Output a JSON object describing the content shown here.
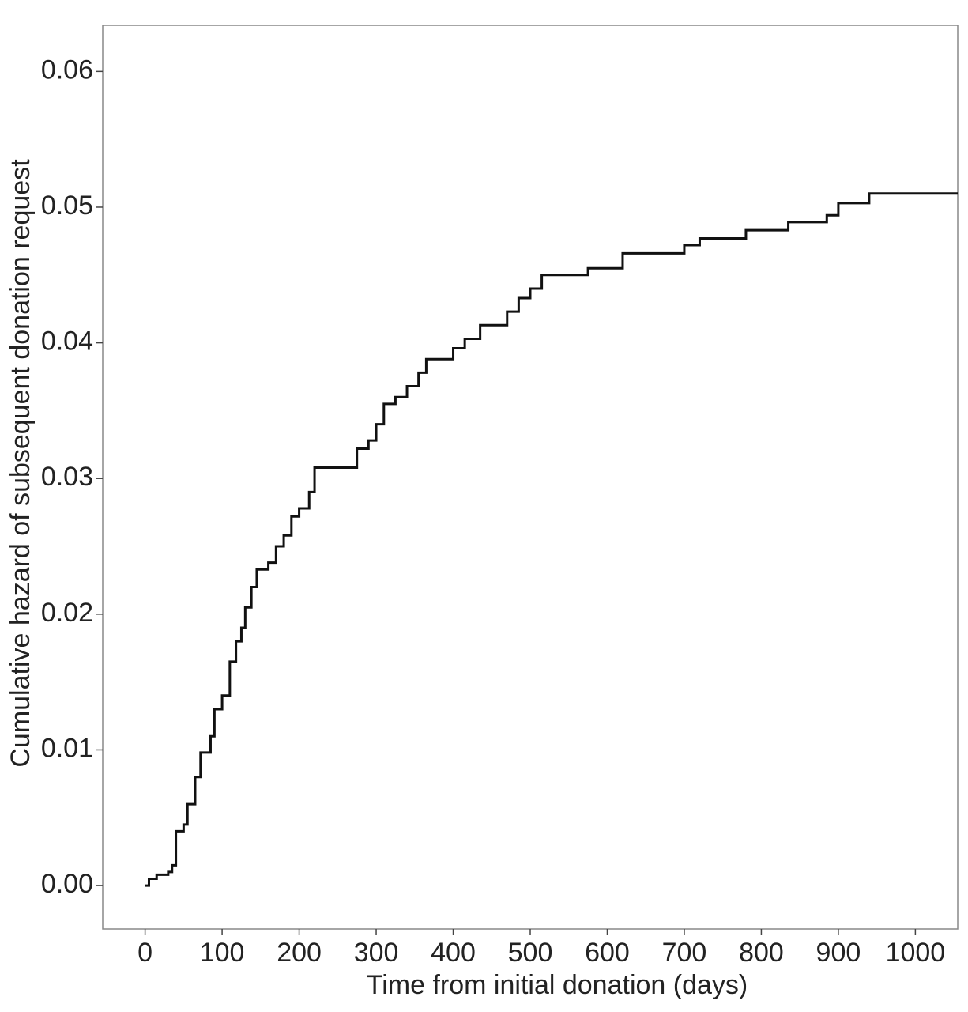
{
  "chart_data": {
    "type": "step",
    "x_label": "Time from initial donation (days)",
    "y_label": "Cumulative hazard of subsequent donation request",
    "x": [
      0,
      5,
      15,
      30,
      35,
      40,
      50,
      55,
      65,
      72,
      85,
      90,
      100,
      110,
      118,
      125,
      130,
      138,
      145,
      160,
      170,
      180,
      190,
      200,
      213,
      220,
      275,
      290,
      300,
      310,
      325,
      340,
      355,
      365,
      400,
      415,
      435,
      470,
      485,
      500,
      515,
      575,
      620,
      700,
      720,
      780,
      835,
      885,
      900,
      940,
      1055
    ],
    "values": [
      0.0,
      0.0005,
      0.0008,
      0.001,
      0.0015,
      0.004,
      0.0045,
      0.006,
      0.008,
      0.0098,
      0.011,
      0.013,
      0.014,
      0.0165,
      0.018,
      0.019,
      0.0205,
      0.022,
      0.0233,
      0.0238,
      0.025,
      0.0258,
      0.0272,
      0.0278,
      0.029,
      0.0308,
      0.0322,
      0.0328,
      0.034,
      0.0355,
      0.036,
      0.0368,
      0.0378,
      0.0388,
      0.0396,
      0.0403,
      0.0413,
      0.0423,
      0.0433,
      0.044,
      0.045,
      0.0455,
      0.0466,
      0.0472,
      0.0477,
      0.0483,
      0.0489,
      0.0494,
      0.0503,
      0.051,
      0.051
    ],
    "color": "#111111",
    "xlim": [
      -55,
      1055
    ],
    "xticks": [
      0,
      100,
      200,
      300,
      400,
      500,
      600,
      700,
      800,
      900,
      1000
    ],
    "ylim": [
      -0.0032,
      0.0634
    ],
    "yticks": [
      {
        "value": 0,
        "label": "0.00"
      },
      0.01,
      0.02,
      0.03,
      0.04,
      0.05,
      0.06
    ]
  }
}
